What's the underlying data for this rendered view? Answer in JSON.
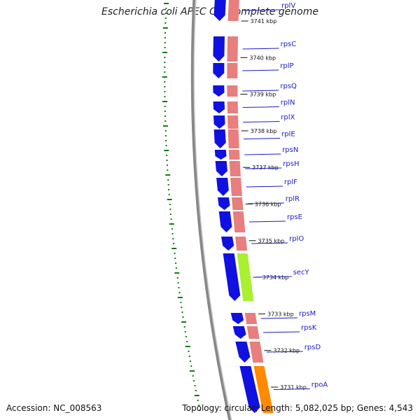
{
  "header": {
    "title": "Escherichia coli APEC O1, complete genome"
  },
  "footer": {
    "accession": "Accession: NC_008563",
    "summary": "Topology: circular; Length: 5,082,025 bp; Genes: 4,543"
  },
  "colors": {
    "cds": "#1010e0",
    "gene_feature": "#e87e7e",
    "sec_feature": "#a8f030",
    "rpoA_feature": "#ff8a00",
    "gc_skew": "#117a11",
    "backbone": "#888888",
    "label": "#1a1acc"
  },
  "ticks": [
    "3741 kbp",
    "3740 kbp",
    "3739 kbp",
    "3738 kbp",
    "3737 kbp",
    "3736 kbp",
    "3735 kbp",
    "3734 kbp",
    "3733 kbp",
    "3732 kbp",
    "3731 kbp"
  ],
  "genes": [
    "rplV",
    "rpsC",
    "rplP",
    "rpsQ",
    "rplN",
    "rplX",
    "rplE",
    "rpsN",
    "rpsH",
    "rplF",
    "rplR",
    "rpsE",
    "rplO",
    "secY",
    "rpsM",
    "rpsK",
    "rpsD",
    "rpoA"
  ]
}
